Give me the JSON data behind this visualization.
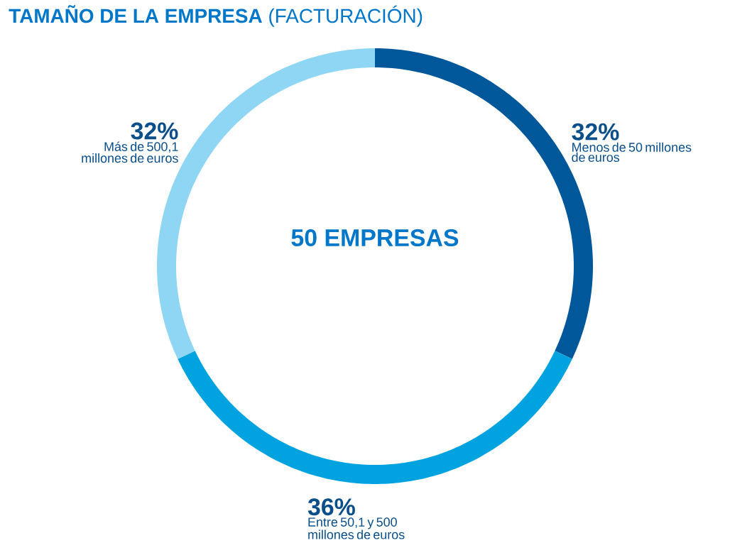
{
  "chart_data": {
    "type": "donut",
    "title": "**TAMAÑO DE LA EMPRESA** (FACTURACIÓN)",
    "categories": [
      "Menos de 50 millones de euros",
      "Entre 50,1 y 500 millones de euros",
      "Más de 500,1 millones de euros"
    ],
    "values": [
      32,
      36,
      32
    ],
    "value_labels": [
      "32%",
      "36%",
      "32%"
    ],
    "colors": [
      "#00579a",
      "#00a3e0",
      "#8fd6f5"
    ],
    "annotations": [
      "50 EMPRESAS"
    ]
  }
}
